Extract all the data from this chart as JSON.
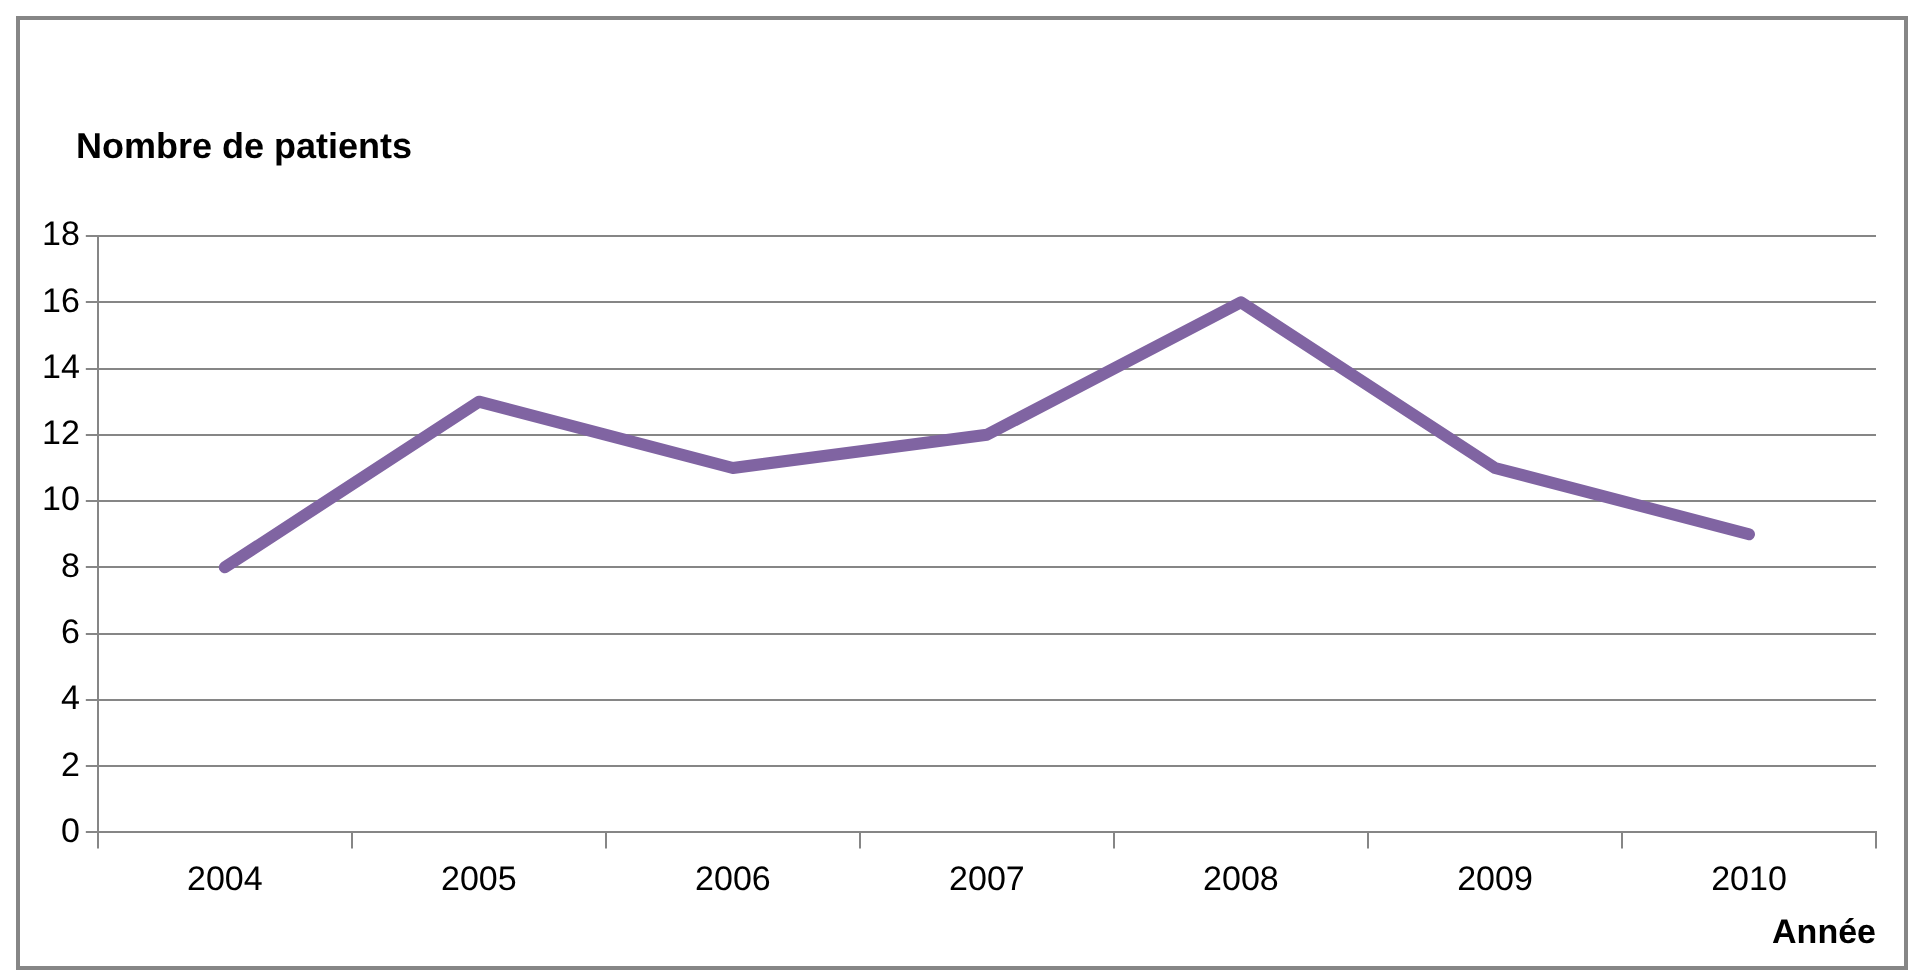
{
  "chart_data": {
    "type": "line",
    "xlabel": "Année",
    "ylabel": "Nombre de patients",
    "categories": [
      "2004",
      "2005",
      "2006",
      "2007",
      "2008",
      "2009",
      "2010"
    ],
    "series": [
      {
        "color": "#8064a2",
        "values": [
          8,
          13,
          11,
          12,
          16,
          11,
          9
        ]
      }
    ],
    "ylim": [
      0,
      18
    ],
    "yticks": [
      0,
      2,
      4,
      6,
      8,
      10,
      12,
      14,
      16,
      18
    ],
    "grid": "y",
    "legend": false,
    "marker": "none",
    "line_style": "solid"
  }
}
